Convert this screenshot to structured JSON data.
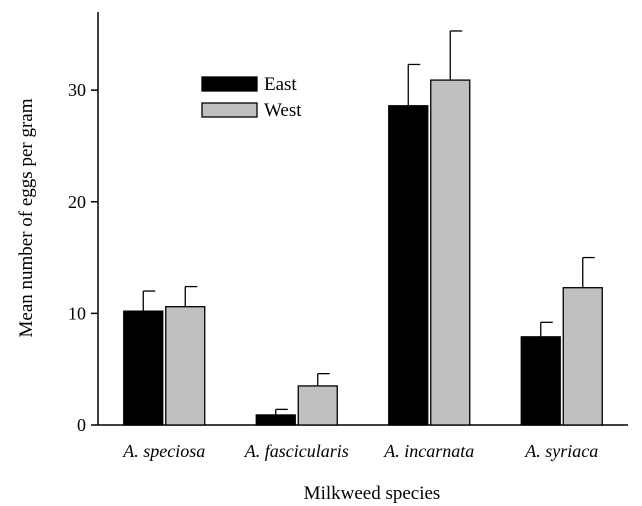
{
  "chart_data": {
    "type": "bar",
    "title": "",
    "xlabel": "Milkweed species",
    "ylabel": "Mean number of eggs per gram",
    "categories": [
      "A. speciosa",
      "A. fascicularis",
      "A. incarnata",
      "A. syriaca"
    ],
    "series": [
      {
        "name": "East",
        "color": "#000000",
        "values": [
          10.2,
          0.9,
          28.6,
          7.9
        ],
        "errors": [
          1.8,
          0.5,
          3.7,
          1.3
        ]
      },
      {
        "name": "West",
        "color": "#c0c0c0",
        "values": [
          10.6,
          3.5,
          30.9,
          12.3
        ],
        "errors": [
          1.8,
          1.1,
          4.4,
          2.7
        ]
      }
    ],
    "ylim": [
      0,
      37
    ],
    "yticks": [
      0,
      10,
      20,
      30
    ],
    "grid": false,
    "legend_position": "top-left"
  }
}
